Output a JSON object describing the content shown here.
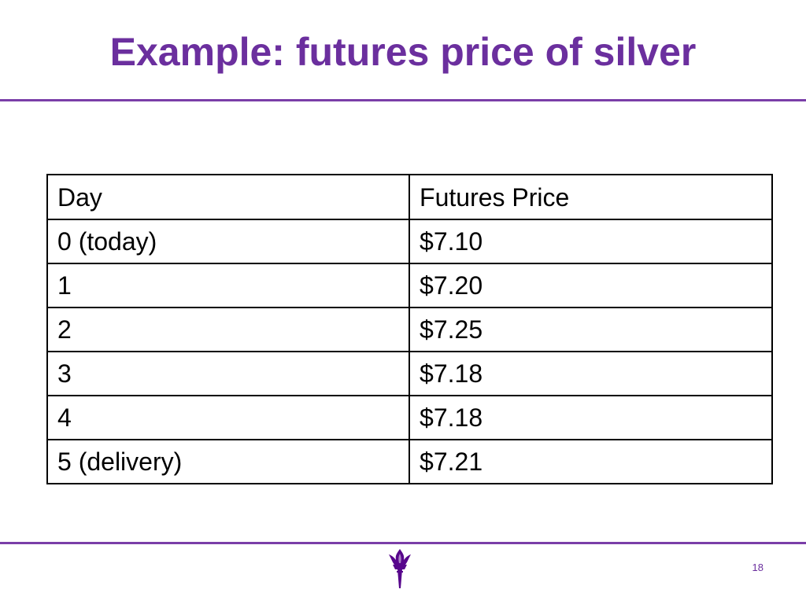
{
  "slide": {
    "title": "Example: futures price of silver",
    "page_number": "18",
    "accent_color": "#6b2f9e",
    "logo_icon": "torch-icon"
  },
  "table": {
    "headers": [
      "Day",
      "Futures Price"
    ],
    "rows": [
      [
        "0 (today)",
        "$7.10"
      ],
      [
        "1",
        "$7.20"
      ],
      [
        "2",
        "$7.25"
      ],
      [
        "3",
        "$7.18"
      ],
      [
        "4",
        "$7.18"
      ],
      [
        "5 (delivery)",
        "$7.21"
      ]
    ]
  },
  "chart_data": {
    "type": "table",
    "columns": [
      "Day",
      "Futures Price"
    ],
    "rows": [
      [
        "0 (today)",
        "$7.10"
      ],
      [
        "1",
        "$7.20"
      ],
      [
        "2",
        "$7.25"
      ],
      [
        "3",
        "$7.18"
      ],
      [
        "4",
        "$7.18"
      ],
      [
        "5 (delivery)",
        "$7.21"
      ]
    ]
  }
}
